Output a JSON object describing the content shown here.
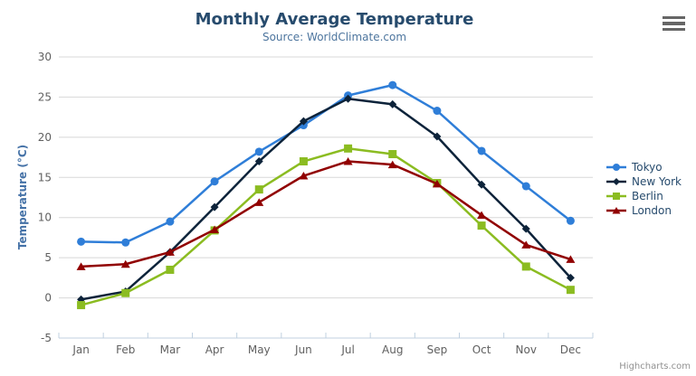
{
  "credits": "Highcharts.com",
  "export_menu": {
    "icon": "hamburger-icon"
  },
  "chart_data": {
    "type": "line",
    "title": "Monthly Average Temperature",
    "subtitle": "Source: WorldClimate.com",
    "xlabel": "",
    "ylabel": "Temperature (°C)",
    "categories": [
      "Jan",
      "Feb",
      "Mar",
      "Apr",
      "May",
      "Jun",
      "Jul",
      "Aug",
      "Sep",
      "Oct",
      "Nov",
      "Dec"
    ],
    "ylim": [
      -5,
      30
    ],
    "yticks": [
      -5,
      0,
      5,
      10,
      15,
      20,
      25,
      30
    ],
    "tick_interval": 5,
    "grid": true,
    "legend_position": "right",
    "colors": {
      "title": "#274b6d",
      "subtitle": "#4d759e",
      "y_axis_title": "#4572a7",
      "axis_label": "#606060",
      "axis_line": "#c0d0e0",
      "grid": "#d8d8d8",
      "legend_text": "#274b6d",
      "credits": "#909090"
    },
    "series": [
      {
        "name": "Tokyo",
        "color": "#2f7ed8",
        "marker": "circle",
        "values": [
          7.0,
          6.9,
          9.5,
          14.5,
          18.2,
          21.5,
          25.2,
          26.5,
          23.3,
          18.3,
          13.9,
          9.6
        ]
      },
      {
        "name": "New York",
        "color": "#0d233a",
        "marker": "diamond",
        "values": [
          -0.2,
          0.8,
          5.7,
          11.3,
          17.0,
          22.0,
          24.8,
          24.1,
          20.1,
          14.1,
          8.6,
          2.5
        ]
      },
      {
        "name": "Berlin",
        "color": "#8bbc21",
        "marker": "square",
        "values": [
          -0.9,
          0.6,
          3.5,
          8.4,
          13.5,
          17.0,
          18.6,
          17.9,
          14.3,
          9.0,
          3.9,
          1.0
        ]
      },
      {
        "name": "London",
        "color": "#910000",
        "marker": "triangle",
        "values": [
          3.9,
          4.2,
          5.7,
          8.5,
          11.9,
          15.2,
          17.0,
          16.6,
          14.2,
          10.3,
          6.6,
          4.8
        ]
      }
    ]
  }
}
